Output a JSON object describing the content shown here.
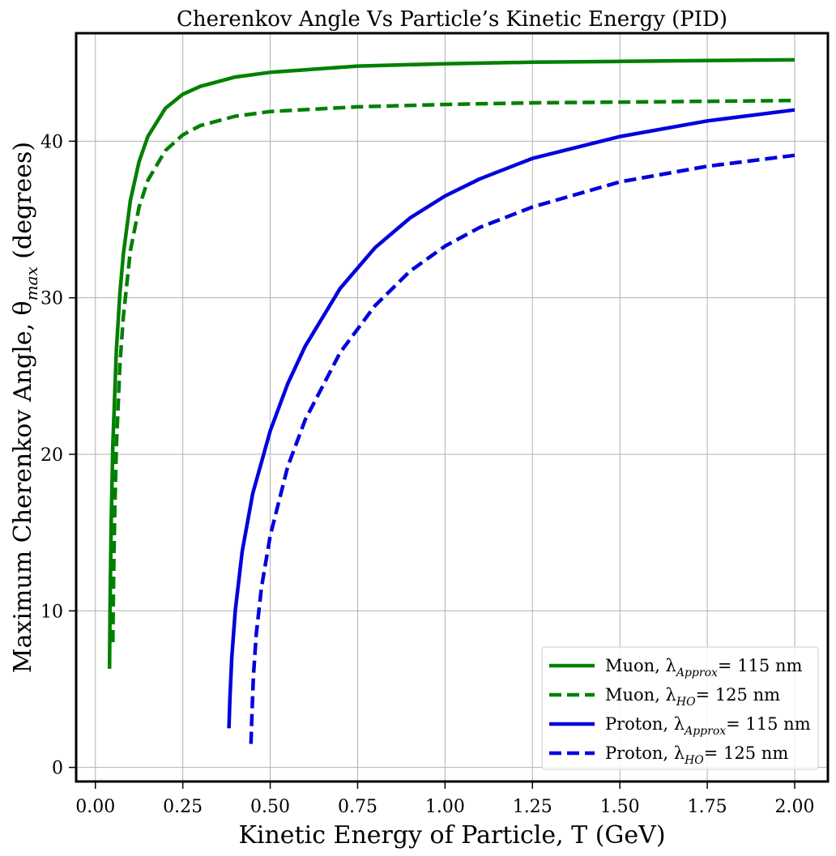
{
  "chart_data": {
    "type": "line",
    "title": "Cherenkov Angle Vs Particle’s Kinetic Energy (PID)",
    "xlabel": "Kinetic Energy of Particle, T (GeV)",
    "ylabel": "Maximum Cherenkov Angle, θ",
    "ylabel_sub": "max",
    "ylabel_suffix": " (degrees)",
    "xlim": [
      -0.055,
      2.095
    ],
    "ylim": [
      -0.9,
      46.9
    ],
    "xticks": [
      0.0,
      0.25,
      0.5,
      0.75,
      1.0,
      1.25,
      1.5,
      1.75,
      2.0
    ],
    "xtick_labels": [
      "0.00",
      "0.25",
      "0.50",
      "0.75",
      "1.00",
      "1.25",
      "1.50",
      "1.75",
      "2.00"
    ],
    "yticks": [
      0,
      10,
      20,
      30,
      40
    ],
    "ytick_labels": [
      "0",
      "10",
      "20",
      "30",
      "40"
    ],
    "grid": true,
    "legend_position": "lower-right",
    "series": [
      {
        "name": "Muon, λ",
        "name_sub": "Approx",
        "name_suffix": "= 115 nm",
        "color": "#008000",
        "dash": "solid",
        "x": [
          0.0405,
          0.042,
          0.045,
          0.05,
          0.06,
          0.07,
          0.08,
          0.1,
          0.125,
          0.15,
          0.2,
          0.25,
          0.3,
          0.4,
          0.5,
          0.75,
          1.0,
          1.25,
          1.5,
          1.75,
          2.0
        ],
        "y": [
          6.3,
          10.5,
          15.5,
          20.6,
          26.6,
          30.3,
          32.8,
          36.2,
          38.7,
          40.3,
          42.1,
          43.0,
          43.5,
          44.1,
          44.4,
          44.8,
          44.95,
          45.05,
          45.1,
          45.15,
          45.2
        ]
      },
      {
        "name": "Muon, λ",
        "name_sub": "HO",
        "name_suffix": "= 125 nm",
        "color": "#008000",
        "dash": "dashed",
        "x": [
          0.05,
          0.052,
          0.055,
          0.06,
          0.07,
          0.08,
          0.1,
          0.125,
          0.15,
          0.2,
          0.25,
          0.3,
          0.4,
          0.5,
          0.75,
          1.0,
          1.25,
          1.5,
          1.75,
          2.0
        ],
        "y": [
          8.0,
          12.0,
          16.0,
          20.4,
          25.7,
          28.8,
          33.0,
          35.8,
          37.5,
          39.4,
          40.4,
          41.0,
          41.6,
          41.9,
          42.2,
          42.35,
          42.45,
          42.5,
          42.55,
          42.6
        ]
      },
      {
        "name": "Proton, λ",
        "name_sub": "Approx",
        "name_suffix": "= 115 nm",
        "color": "#0000dd",
        "dash": "solid",
        "x": [
          0.382,
          0.385,
          0.39,
          0.4,
          0.42,
          0.45,
          0.5,
          0.55,
          0.6,
          0.7,
          0.8,
          0.9,
          1.0,
          1.1,
          1.25,
          1.5,
          1.75,
          2.0
        ],
        "y": [
          2.5,
          4.5,
          7.0,
          10.0,
          13.8,
          17.5,
          21.5,
          24.5,
          26.9,
          30.6,
          33.2,
          35.1,
          36.5,
          37.6,
          38.9,
          40.3,
          41.3,
          42.0
        ]
      },
      {
        "name": "Proton, λ",
        "name_sub": "HO",
        "name_suffix": "= 125 nm",
        "color": "#0000dd",
        "dash": "dashed",
        "x": [
          0.445,
          0.448,
          0.452,
          0.46,
          0.475,
          0.5,
          0.55,
          0.6,
          0.7,
          0.8,
          0.9,
          1.0,
          1.1,
          1.25,
          1.5,
          1.75,
          2.0
        ],
        "y": [
          1.5,
          3.5,
          5.8,
          8.5,
          11.5,
          14.8,
          19.2,
          22.2,
          26.5,
          29.5,
          31.7,
          33.3,
          34.5,
          35.8,
          37.4,
          38.4,
          39.1
        ]
      }
    ]
  }
}
